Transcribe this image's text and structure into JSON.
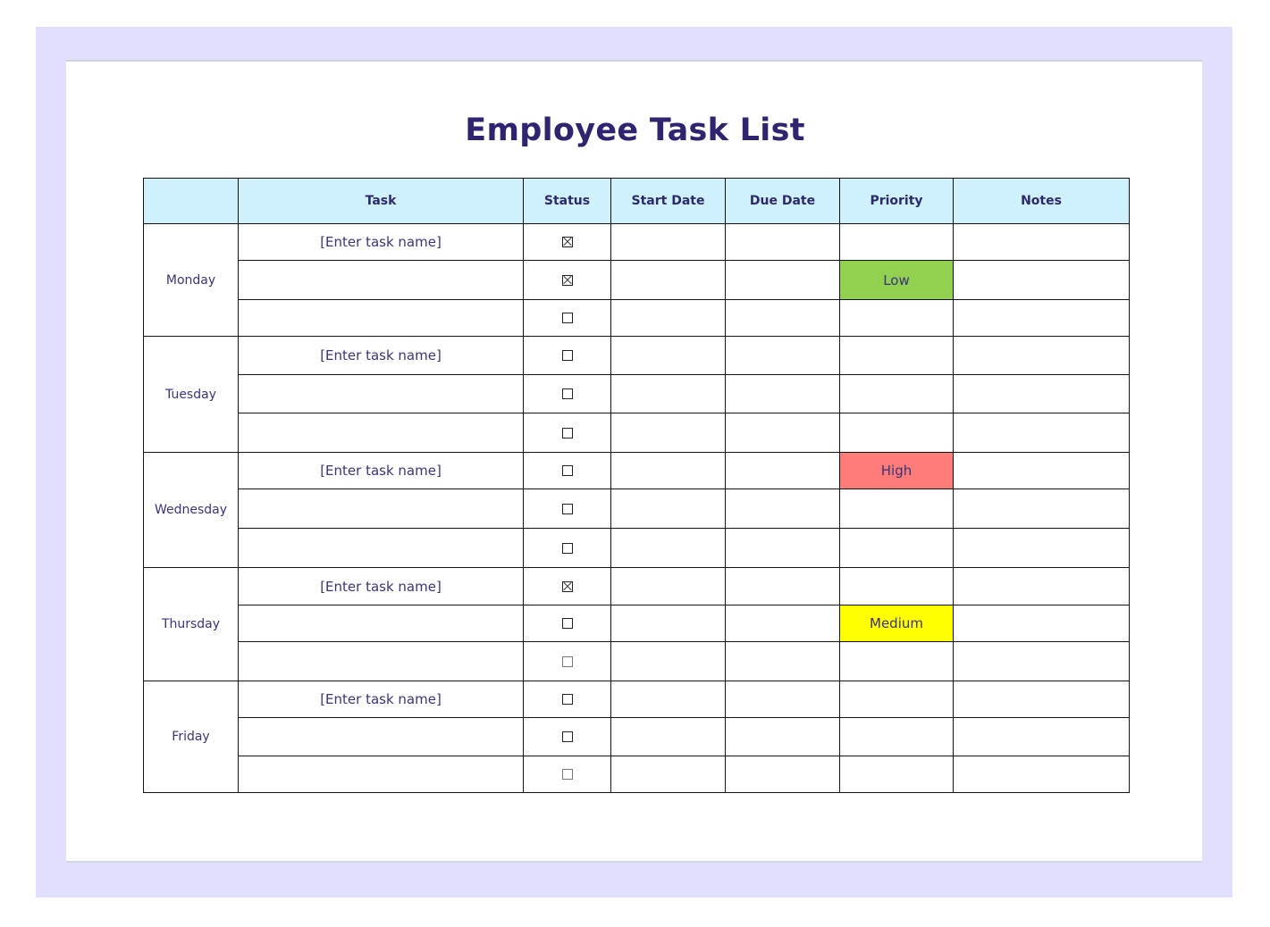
{
  "title": "Employee Task List",
  "colors": {
    "frame": "#e0e0fe",
    "header": "#cff1fd",
    "low": "#92d050",
    "high": "#ff7c78",
    "medium": "#ffff00"
  },
  "headers": [
    "",
    "Task",
    "Status",
    "Start Date",
    "Due Date",
    "Priority",
    "Notes"
  ],
  "days": [
    {
      "name": "Monday",
      "rows": [
        {
          "task": "[Enter task name]",
          "checked": true,
          "light": false,
          "priority": "",
          "priority_color": ""
        },
        {
          "task": "",
          "checked": true,
          "light": false,
          "priority": "Low",
          "priority_color": "#92d050"
        },
        {
          "task": "",
          "checked": false,
          "light": false,
          "priority": "",
          "priority_color": ""
        }
      ]
    },
    {
      "name": "Tuesday",
      "rows": [
        {
          "task": "[Enter task name]",
          "checked": false,
          "light": false,
          "priority": "",
          "priority_color": ""
        },
        {
          "task": "",
          "checked": false,
          "light": false,
          "priority": "",
          "priority_color": ""
        },
        {
          "task": "",
          "checked": false,
          "light": false,
          "priority": "",
          "priority_color": ""
        }
      ]
    },
    {
      "name": "Wednesday",
      "rows": [
        {
          "task": "[Enter task name]",
          "checked": false,
          "light": false,
          "priority": "High",
          "priority_color": "#ff7c78"
        },
        {
          "task": "",
          "checked": false,
          "light": false,
          "priority": "",
          "priority_color": ""
        },
        {
          "task": "",
          "checked": false,
          "light": false,
          "priority": "",
          "priority_color": ""
        }
      ]
    },
    {
      "name": "Thursday",
      "rows": [
        {
          "task": "[Enter task name]",
          "checked": true,
          "light": false,
          "priority": "",
          "priority_color": ""
        },
        {
          "task": "",
          "checked": false,
          "light": false,
          "priority": "Medium",
          "priority_color": "#ffff00"
        },
        {
          "task": "",
          "checked": false,
          "light": true,
          "priority": "",
          "priority_color": ""
        }
      ]
    },
    {
      "name": "Friday",
      "rows": [
        {
          "task": "[Enter task name]",
          "checked": false,
          "light": false,
          "priority": "",
          "priority_color": ""
        },
        {
          "task": "",
          "checked": false,
          "light": false,
          "priority": "",
          "priority_color": ""
        },
        {
          "task": "",
          "checked": false,
          "light": true,
          "priority": "",
          "priority_color": ""
        }
      ]
    }
  ]
}
